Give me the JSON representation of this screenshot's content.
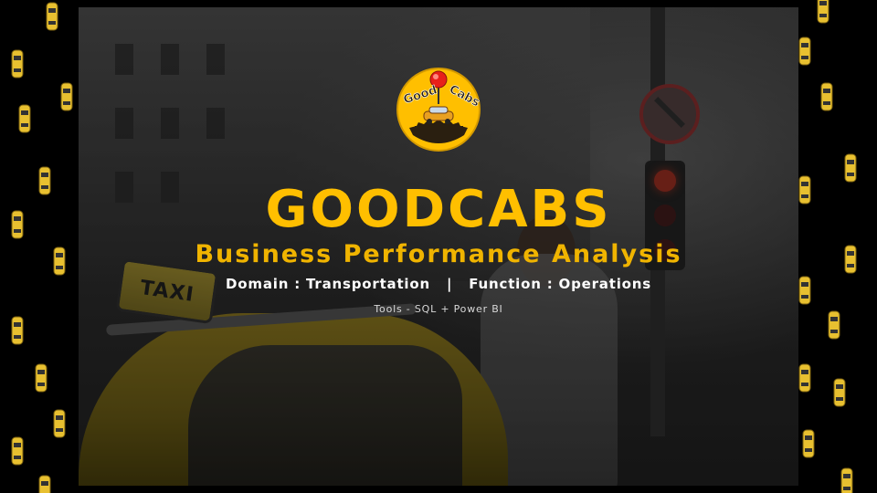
{
  "slide": {
    "title": "GOODCABS",
    "subtitle": "Business Performance Analysis",
    "domain": "Domain : Transportation",
    "separator": "|",
    "function": "Function : Operations",
    "tools": "Tools - SQL + Power BI"
  },
  "logo": {
    "line1": "Good",
    "line2": "Cabs"
  },
  "photo": {
    "taxi_sign": "TAXI"
  },
  "colors": {
    "accent": "#ffbf00",
    "subtitle": "#f0b400",
    "background": "#000000",
    "text": "#ffffff"
  }
}
